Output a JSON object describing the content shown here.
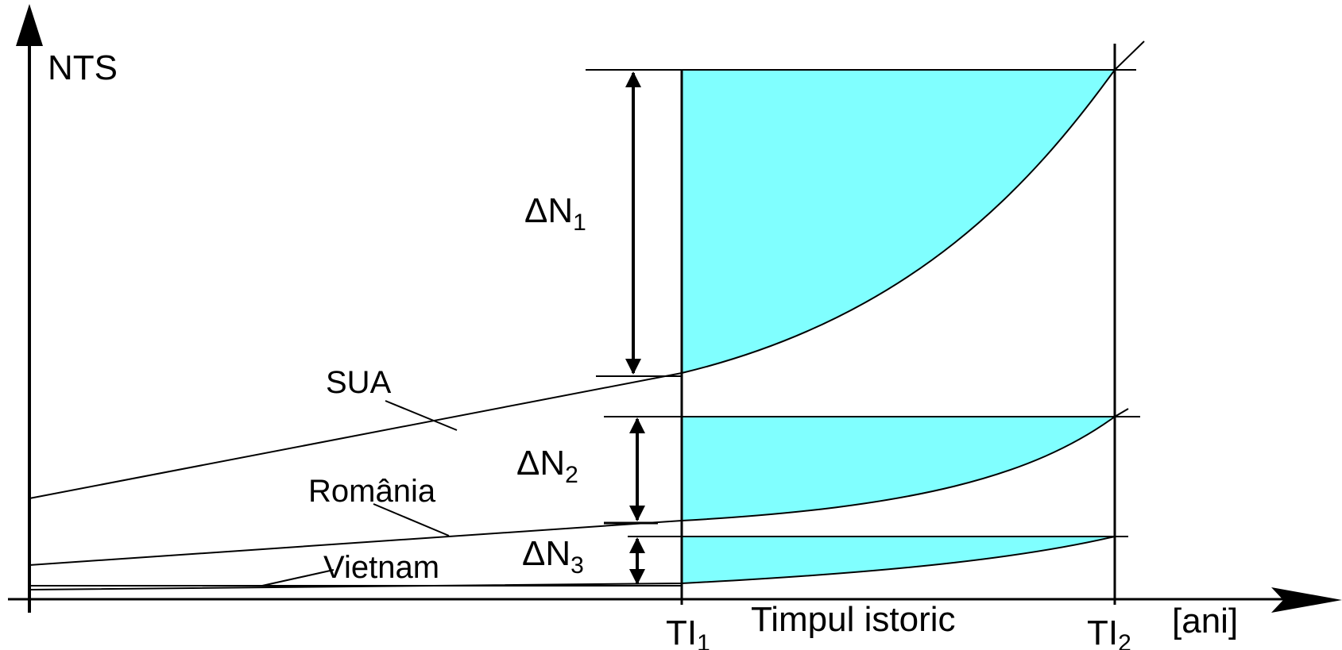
{
  "y_axis_label": "NTS",
  "x_axis_label": "Timpul istoric",
  "x_unit": "[ani]",
  "tick_1": {
    "base": "TI",
    "sub": "1"
  },
  "tick_2": {
    "base": "TI",
    "sub": "2"
  },
  "countries": {
    "usa": "SUA",
    "romania": "România",
    "vietnam": "Vietnam"
  },
  "gaps": {
    "dn1": {
      "base": "ΔN",
      "sub": "1"
    },
    "dn2": {
      "base": "ΔN",
      "sub": "2"
    },
    "dn3": {
      "base": "ΔN",
      "sub": "3"
    }
  },
  "colors": {
    "fill": "#80ffff",
    "line": "#000000",
    "background": "#ffffff"
  }
}
